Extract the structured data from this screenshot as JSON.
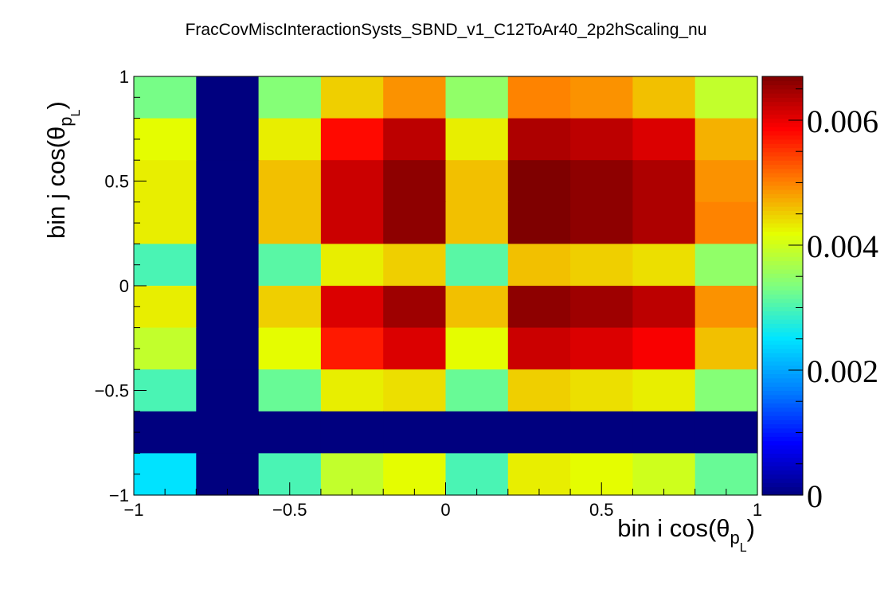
{
  "chart_data": {
    "type": "heatmap",
    "title": "FracCovMiscInteractionSysts_SBND_v1_C12ToAr40_2p2hScaling_nu",
    "xlabel": {
      "main": "bin i cos(θ",
      "sub": "p",
      "subsub": "L",
      "close": ")"
    },
    "ylabel": {
      "main": "bin j cos(θ",
      "sub": "p",
      "subsub": "L",
      "close": ")"
    },
    "xlim": [
      -1,
      1
    ],
    "ylim": [
      -1,
      1
    ],
    "x_tick_labels": [
      "−1",
      "−0.5",
      "0",
      "0.5",
      "1"
    ],
    "x_tick_values": [
      -1,
      -0.5,
      0,
      0.5,
      1
    ],
    "y_tick_labels": [
      "−1",
      "−0.5",
      "0",
      "0.5",
      "1"
    ],
    "y_tick_values": [
      -1,
      -0.5,
      0,
      0.5,
      1
    ],
    "z_range": [
      0,
      0.0067
    ],
    "colorbar_tick_labels": [
      "0",
      "0.002",
      "0.004",
      "0.006"
    ],
    "colorbar_tick_values": [
      0,
      0.002,
      0.004,
      0.006
    ],
    "x_bin_edges": [
      -1,
      -0.8,
      -0.6,
      -0.4,
      -0.2,
      0,
      0.2,
      0.4,
      0.6,
      0.8,
      1
    ],
    "y_bin_edges": [
      -1,
      -0.8,
      -0.6,
      -0.4,
      -0.2,
      0,
      0.2,
      0.4,
      0.6,
      0.8,
      1
    ],
    "z_rows_top_to_bottom": [
      [
        0.0033,
        0,
        0.0034,
        0.0045,
        0.0049,
        0.0035,
        0.005,
        0.0049,
        0.0046,
        0.0039
      ],
      [
        0.0042,
        0,
        0.0043,
        0.0058,
        0.0063,
        0.0043,
        0.0064,
        0.0063,
        0.0061,
        0.0047
      ],
      [
        0.0043,
        0,
        0.0046,
        0.0062,
        0.0066,
        0.0046,
        0.0067,
        0.0066,
        0.0064,
        0.0049
      ],
      [
        0.0043,
        0,
        0.0046,
        0.0062,
        0.0066,
        0.0046,
        0.0067,
        0.0066,
        0.0064,
        0.005
      ],
      [
        0.003,
        0,
        0.0031,
        0.0043,
        0.0045,
        0.0031,
        0.0046,
        0.0045,
        0.0044,
        0.0035
      ],
      [
        0.0043,
        0,
        0.0045,
        0.0061,
        0.0065,
        0.0046,
        0.0066,
        0.0065,
        0.0063,
        0.0049
      ],
      [
        0.0039,
        0,
        0.0042,
        0.0057,
        0.0061,
        0.0042,
        0.0062,
        0.0061,
        0.0059,
        0.0046
      ],
      [
        0.003,
        0,
        0.0032,
        0.0043,
        0.0044,
        0.0032,
        0.0045,
        0.0044,
        0.0043,
        0.0034
      ],
      [
        0,
        0,
        0,
        0,
        0,
        0,
        0,
        0,
        0,
        0
      ],
      [
        0.0025,
        0,
        0.003,
        0.0039,
        0.0042,
        0.003,
        0.0043,
        0.0042,
        0.004,
        0.0032
      ]
    ],
    "colormap": [
      "#00007f",
      "#0000ff",
      "#007fff",
      "#00e5ff",
      "#7fff7f",
      "#e5ff00",
      "#ff7f00",
      "#ff0000",
      "#7f0000"
    ]
  }
}
